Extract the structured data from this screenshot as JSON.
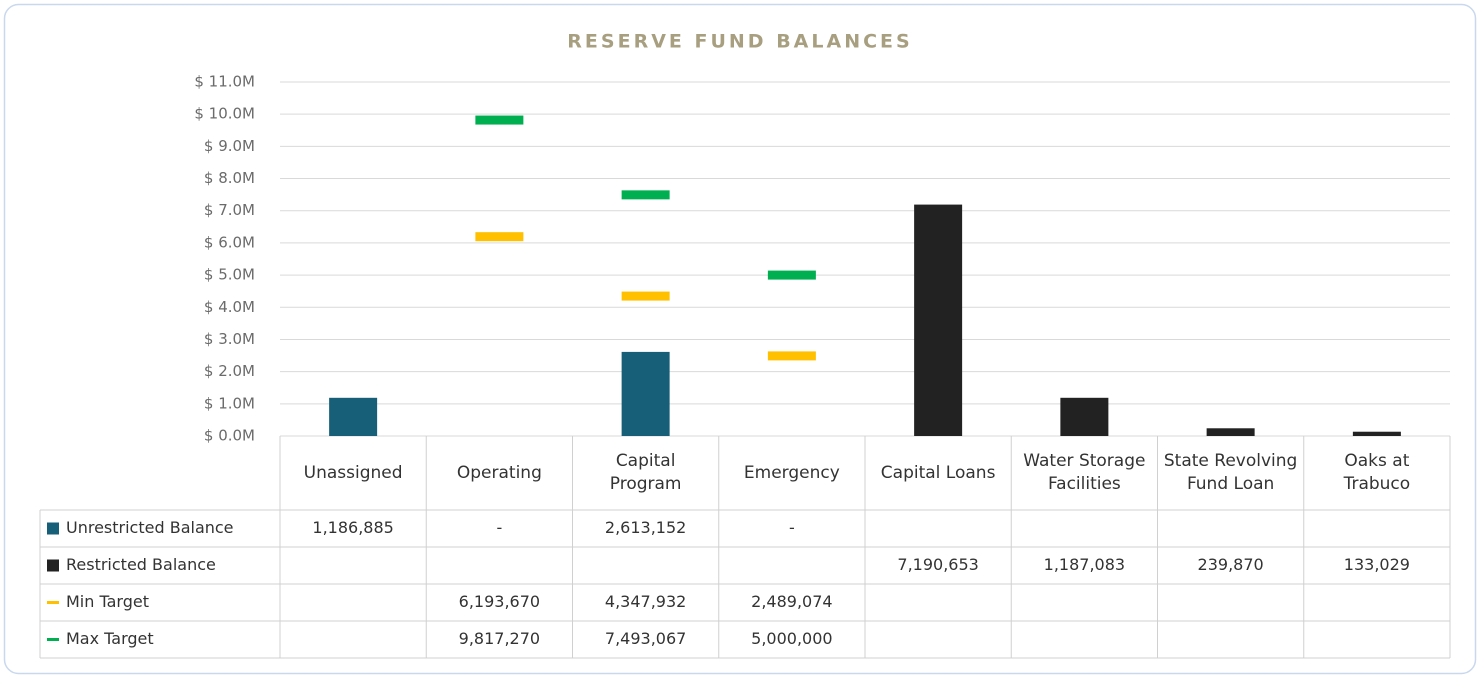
{
  "chart_data": {
    "type": "bar",
    "title": "RESERVE FUND BALANCES",
    "categories": [
      "Unassigned",
      "Operating",
      "Capital Program",
      "Emergency",
      "Capital Loans",
      "Water Storage Facilities",
      "State Revolving Fund Loan",
      "Oaks at Trabuco"
    ],
    "series": [
      {
        "name": "Unrestricted Balance",
        "type": "bar",
        "color": "#175e78",
        "values": [
          1186885,
          0,
          2613152,
          0,
          null,
          null,
          null,
          null
        ],
        "value_labels": [
          "1,186,885",
          "-",
          "2,613,152",
          "-",
          null,
          null,
          null,
          null
        ]
      },
      {
        "name": "Restricted Balance",
        "type": "bar",
        "color": "#222222",
        "values": [
          null,
          null,
          null,
          null,
          7190653,
          1187083,
          239870,
          133029
        ],
        "value_labels": [
          null,
          null,
          null,
          null,
          "7,190,653",
          "1,187,083",
          "239,870",
          "133,029"
        ]
      },
      {
        "name": "Min Target",
        "type": "marker",
        "color": "#ffc000",
        "values": [
          null,
          6193670,
          4347932,
          2489074,
          null,
          null,
          null,
          null
        ],
        "value_labels": [
          null,
          "6,193,670",
          "4,347,932",
          "2,489,074",
          null,
          null,
          null,
          null
        ]
      },
      {
        "name": "Max Target",
        "type": "marker",
        "color": "#00b050",
        "values": [
          null,
          9817270,
          7493067,
          5000000,
          null,
          null,
          null,
          null
        ],
        "value_labels": [
          null,
          "9,817,270",
          "7,493,067",
          "5,000,000",
          null,
          null,
          null,
          null
        ]
      }
    ],
    "ylim": [
      0,
      11000000
    ],
    "yticks": [
      {
        "value": 0,
        "label": "$ 0.0M"
      },
      {
        "value": 1000000,
        "label": "$ 1.0M"
      },
      {
        "value": 2000000,
        "label": "$ 2.0M"
      },
      {
        "value": 3000000,
        "label": "$ 3.0M"
      },
      {
        "value": 4000000,
        "label": "$ 4.0M"
      },
      {
        "value": 5000000,
        "label": "$ 5.0M"
      },
      {
        "value": 6000000,
        "label": "$ 6.0M"
      },
      {
        "value": 7000000,
        "label": "$ 7.0M"
      },
      {
        "value": 8000000,
        "label": "$ 8.0M"
      },
      {
        "value": 9000000,
        "label": "$ 9.0M"
      },
      {
        "value": 10000000,
        "label": "$ 10.0M"
      },
      {
        "value": 11000000,
        "label": "$ 11.0M"
      }
    ],
    "grid": true
  }
}
